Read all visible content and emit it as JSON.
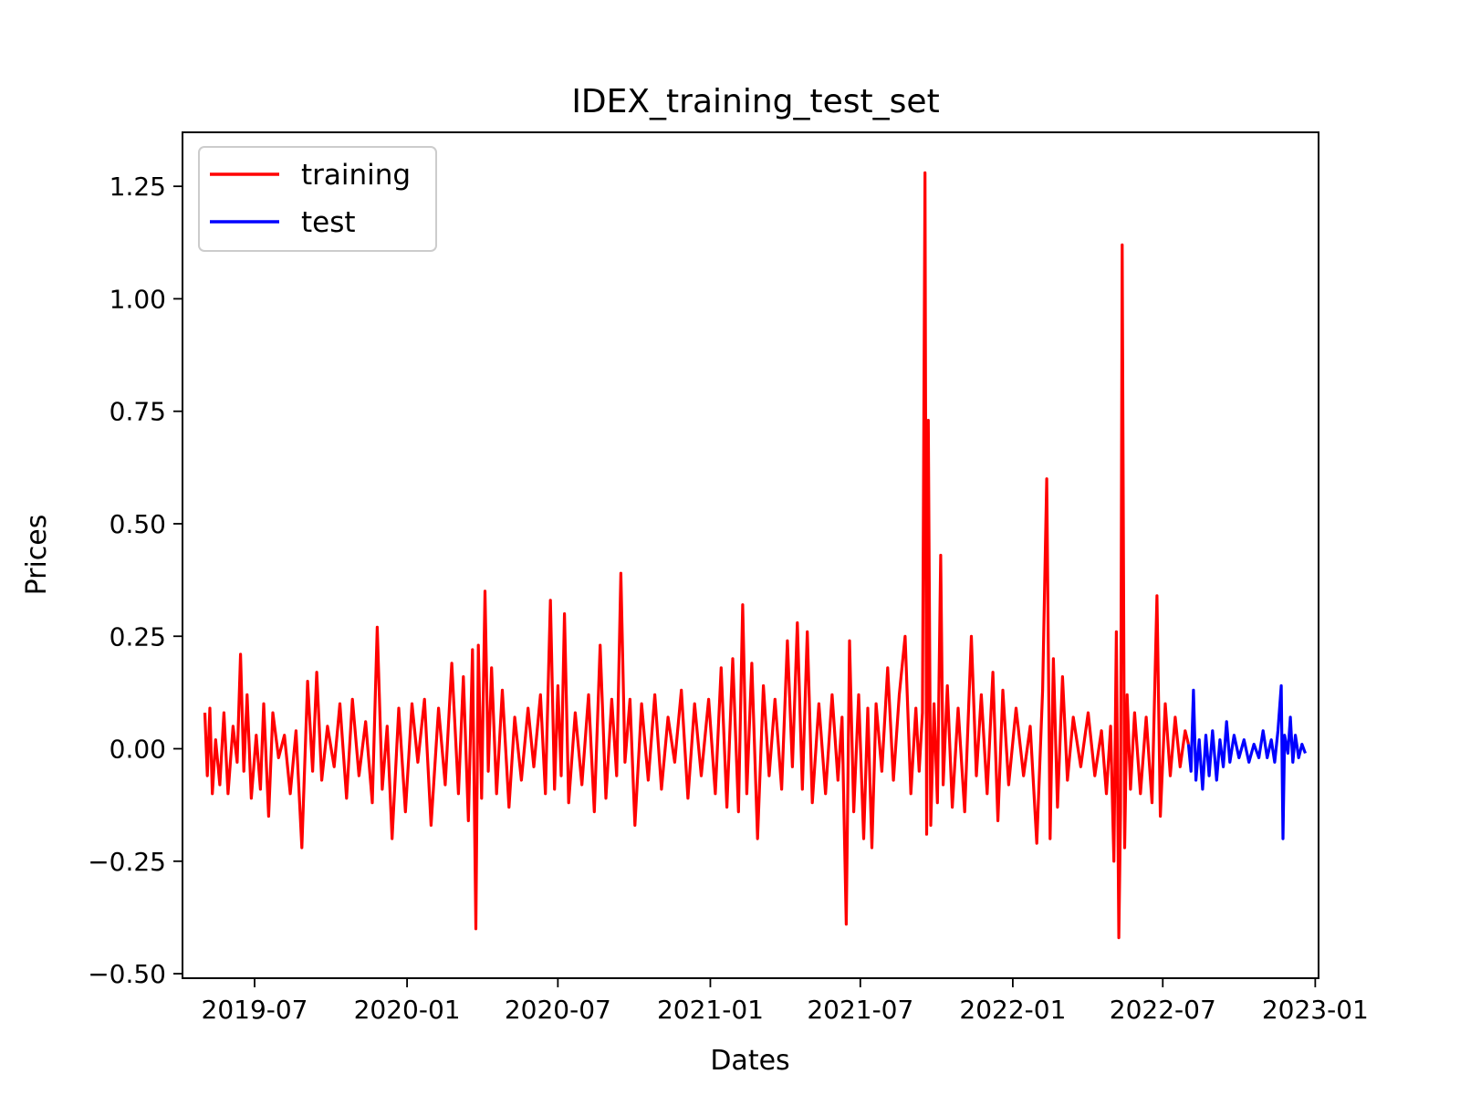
{
  "chart_data": {
    "type": "line",
    "title": "IDEX_training_test_set",
    "xlabel": "Dates",
    "ylabel": "Prices",
    "x_range": [
      "2019-04-05",
      "2023-01-05"
    ],
    "ylim": [
      -0.51,
      1.37
    ],
    "x_ticks": [
      {
        "date": "2019-07-01",
        "label": "2019-07"
      },
      {
        "date": "2020-01-01",
        "label": "2020-01"
      },
      {
        "date": "2020-07-01",
        "label": "2020-07"
      },
      {
        "date": "2021-01-01",
        "label": "2021-01"
      },
      {
        "date": "2021-07-01",
        "label": "2021-07"
      },
      {
        "date": "2022-01-01",
        "label": "2022-01"
      },
      {
        "date": "2022-07-01",
        "label": "2022-07"
      },
      {
        "date": "2023-01-01",
        "label": "2023-01"
      }
    ],
    "y_ticks": [
      {
        "value": -0.5,
        "label": "−0.50"
      },
      {
        "value": -0.25,
        "label": "−0.25"
      },
      {
        "value": 0.0,
        "label": "0.00"
      },
      {
        "value": 0.25,
        "label": "0.25"
      },
      {
        "value": 0.5,
        "label": "0.50"
      },
      {
        "value": 0.75,
        "label": "0.75"
      },
      {
        "value": 1.0,
        "label": "1.00"
      },
      {
        "value": 1.25,
        "label": "1.25"
      }
    ],
    "grid": false,
    "legend": {
      "position": "top-left"
    },
    "series": [
      {
        "name": "training",
        "color": "#ff0000",
        "points": [
          [
            "2019-05-02",
            0.08
          ],
          [
            "2019-05-05",
            -0.06
          ],
          [
            "2019-05-08",
            0.09
          ],
          [
            "2019-05-11",
            -0.1
          ],
          [
            "2019-05-15",
            0.02
          ],
          [
            "2019-05-20",
            -0.08
          ],
          [
            "2019-05-25",
            0.08
          ],
          [
            "2019-05-30",
            -0.1
          ],
          [
            "2019-06-05",
            0.05
          ],
          [
            "2019-06-10",
            -0.03
          ],
          [
            "2019-06-14",
            0.21
          ],
          [
            "2019-06-18",
            -0.05
          ],
          [
            "2019-06-22",
            0.12
          ],
          [
            "2019-06-27",
            -0.11
          ],
          [
            "2019-07-03",
            0.03
          ],
          [
            "2019-07-08",
            -0.09
          ],
          [
            "2019-07-12",
            0.1
          ],
          [
            "2019-07-18",
            -0.15
          ],
          [
            "2019-07-23",
            0.08
          ],
          [
            "2019-07-30",
            -0.02
          ],
          [
            "2019-08-06",
            0.03
          ],
          [
            "2019-08-13",
            -0.1
          ],
          [
            "2019-08-20",
            0.04
          ],
          [
            "2019-08-27",
            -0.22
          ],
          [
            "2019-09-03",
            0.15
          ],
          [
            "2019-09-09",
            -0.05
          ],
          [
            "2019-09-14",
            0.17
          ],
          [
            "2019-09-20",
            -0.07
          ],
          [
            "2019-09-27",
            0.05
          ],
          [
            "2019-10-05",
            -0.04
          ],
          [
            "2019-10-12",
            0.1
          ],
          [
            "2019-10-20",
            -0.11
          ],
          [
            "2019-10-27",
            0.11
          ],
          [
            "2019-11-04",
            -0.06
          ],
          [
            "2019-11-12",
            0.06
          ],
          [
            "2019-11-20",
            -0.12
          ],
          [
            "2019-11-26",
            0.27
          ],
          [
            "2019-12-02",
            -0.09
          ],
          [
            "2019-12-08",
            0.05
          ],
          [
            "2019-12-14",
            -0.2
          ],
          [
            "2019-12-22",
            0.09
          ],
          [
            "2019-12-30",
            -0.14
          ],
          [
            "2020-01-07",
            0.1
          ],
          [
            "2020-01-14",
            -0.03
          ],
          [
            "2020-01-22",
            0.11
          ],
          [
            "2020-01-30",
            -0.17
          ],
          [
            "2020-02-08",
            0.09
          ],
          [
            "2020-02-16",
            -0.08
          ],
          [
            "2020-02-24",
            0.19
          ],
          [
            "2020-03-03",
            -0.1
          ],
          [
            "2020-03-09",
            0.16
          ],
          [
            "2020-03-15",
            -0.16
          ],
          [
            "2020-03-20",
            0.22
          ],
          [
            "2020-03-24",
            -0.4
          ],
          [
            "2020-03-27",
            0.23
          ],
          [
            "2020-03-31",
            -0.11
          ],
          [
            "2020-04-04",
            0.35
          ],
          [
            "2020-04-08",
            -0.05
          ],
          [
            "2020-04-12",
            0.18
          ],
          [
            "2020-04-18",
            -0.1
          ],
          [
            "2020-04-25",
            0.13
          ],
          [
            "2020-05-03",
            -0.13
          ],
          [
            "2020-05-10",
            0.07
          ],
          [
            "2020-05-18",
            -0.07
          ],
          [
            "2020-05-26",
            0.09
          ],
          [
            "2020-06-02",
            -0.04
          ],
          [
            "2020-06-10",
            0.12
          ],
          [
            "2020-06-16",
            -0.1
          ],
          [
            "2020-06-22",
            0.33
          ],
          [
            "2020-06-27",
            -0.09
          ],
          [
            "2020-07-01",
            0.14
          ],
          [
            "2020-07-05",
            -0.06
          ],
          [
            "2020-07-09",
            0.3
          ],
          [
            "2020-07-14",
            -0.12
          ],
          [
            "2020-07-22",
            0.08
          ],
          [
            "2020-07-30",
            -0.08
          ],
          [
            "2020-08-07",
            0.12
          ],
          [
            "2020-08-14",
            -0.14
          ],
          [
            "2020-08-21",
            0.23
          ],
          [
            "2020-08-28",
            -0.11
          ],
          [
            "2020-09-04",
            0.11
          ],
          [
            "2020-09-10",
            -0.06
          ],
          [
            "2020-09-15",
            0.39
          ],
          [
            "2020-09-20",
            -0.03
          ],
          [
            "2020-09-26",
            0.11
          ],
          [
            "2020-10-02",
            -0.17
          ],
          [
            "2020-10-10",
            0.1
          ],
          [
            "2020-10-18",
            -0.07
          ],
          [
            "2020-10-26",
            0.12
          ],
          [
            "2020-11-03",
            -0.09
          ],
          [
            "2020-11-11",
            0.07
          ],
          [
            "2020-11-19",
            -0.03
          ],
          [
            "2020-11-27",
            0.13
          ],
          [
            "2020-12-05",
            -0.11
          ],
          [
            "2020-12-13",
            0.1
          ],
          [
            "2020-12-21",
            -0.06
          ],
          [
            "2020-12-30",
            0.11
          ],
          [
            "2021-01-07",
            -0.1
          ],
          [
            "2021-01-14",
            0.18
          ],
          [
            "2021-01-21",
            -0.13
          ],
          [
            "2021-01-28",
            0.2
          ],
          [
            "2021-02-04",
            -0.14
          ],
          [
            "2021-02-09",
            0.32
          ],
          [
            "2021-02-14",
            -0.1
          ],
          [
            "2021-02-20",
            0.19
          ],
          [
            "2021-02-27",
            -0.2
          ],
          [
            "2021-03-06",
            0.14
          ],
          [
            "2021-03-13",
            -0.06
          ],
          [
            "2021-03-20",
            0.11
          ],
          [
            "2021-03-28",
            -0.09
          ],
          [
            "2021-04-04",
            0.24
          ],
          [
            "2021-04-10",
            -0.04
          ],
          [
            "2021-04-16",
            0.28
          ],
          [
            "2021-04-22",
            -0.09
          ],
          [
            "2021-04-28",
            0.26
          ],
          [
            "2021-05-04",
            -0.12
          ],
          [
            "2021-05-12",
            0.1
          ],
          [
            "2021-05-20",
            -0.1
          ],
          [
            "2021-05-28",
            0.12
          ],
          [
            "2021-06-04",
            -0.07
          ],
          [
            "2021-06-09",
            0.07
          ],
          [
            "2021-06-14",
            -0.39
          ],
          [
            "2021-06-18",
            0.24
          ],
          [
            "2021-06-23",
            -0.14
          ],
          [
            "2021-06-29",
            0.12
          ],
          [
            "2021-07-05",
            -0.2
          ],
          [
            "2021-07-10",
            0.09
          ],
          [
            "2021-07-15",
            -0.22
          ],
          [
            "2021-07-20",
            0.1
          ],
          [
            "2021-07-27",
            -0.05
          ],
          [
            "2021-08-03",
            0.18
          ],
          [
            "2021-08-10",
            -0.07
          ],
          [
            "2021-08-17",
            0.12
          ],
          [
            "2021-08-24",
            0.25
          ],
          [
            "2021-08-31",
            -0.1
          ],
          [
            "2021-09-06",
            0.09
          ],
          [
            "2021-09-10",
            -0.05
          ],
          [
            "2021-09-14",
            0.08
          ],
          [
            "2021-09-17",
            1.28
          ],
          [
            "2021-09-19",
            -0.19
          ],
          [
            "2021-09-21",
            0.73
          ],
          [
            "2021-09-24",
            -0.17
          ],
          [
            "2021-09-28",
            0.1
          ],
          [
            "2021-10-02",
            -0.12
          ],
          [
            "2021-10-06",
            0.43
          ],
          [
            "2021-10-09",
            -0.08
          ],
          [
            "2021-10-14",
            0.14
          ],
          [
            "2021-10-20",
            -0.13
          ],
          [
            "2021-10-27",
            0.09
          ],
          [
            "2021-11-04",
            -0.14
          ],
          [
            "2021-11-12",
            0.25
          ],
          [
            "2021-11-18",
            -0.06
          ],
          [
            "2021-11-24",
            0.12
          ],
          [
            "2021-12-01",
            -0.1
          ],
          [
            "2021-12-08",
            0.17
          ],
          [
            "2021-12-14",
            -0.16
          ],
          [
            "2021-12-20",
            0.13
          ],
          [
            "2021-12-27",
            -0.08
          ],
          [
            "2022-01-05",
            0.09
          ],
          [
            "2022-01-14",
            -0.06
          ],
          [
            "2022-01-22",
            0.05
          ],
          [
            "2022-01-30",
            -0.21
          ],
          [
            "2022-02-06",
            0.13
          ],
          [
            "2022-02-11",
            0.6
          ],
          [
            "2022-02-15",
            -0.2
          ],
          [
            "2022-02-19",
            0.2
          ],
          [
            "2022-02-24",
            -0.13
          ],
          [
            "2022-03-02",
            0.16
          ],
          [
            "2022-03-08",
            -0.07
          ],
          [
            "2022-03-15",
            0.07
          ],
          [
            "2022-03-24",
            -0.04
          ],
          [
            "2022-04-02",
            0.08
          ],
          [
            "2022-04-10",
            -0.06
          ],
          [
            "2022-04-18",
            0.04
          ],
          [
            "2022-04-24",
            -0.1
          ],
          [
            "2022-04-29",
            0.05
          ],
          [
            "2022-05-03",
            -0.25
          ],
          [
            "2022-05-06",
            0.26
          ],
          [
            "2022-05-09",
            -0.42
          ],
          [
            "2022-05-11",
            -0.14
          ],
          [
            "2022-05-13",
            1.12
          ],
          [
            "2022-05-16",
            -0.22
          ],
          [
            "2022-05-19",
            0.12
          ],
          [
            "2022-05-23",
            -0.09
          ],
          [
            "2022-05-28",
            0.08
          ],
          [
            "2022-06-04",
            -0.1
          ],
          [
            "2022-06-11",
            0.07
          ],
          [
            "2022-06-18",
            -0.12
          ],
          [
            "2022-06-24",
            0.34
          ],
          [
            "2022-06-28",
            -0.15
          ],
          [
            "2022-07-04",
            0.1
          ],
          [
            "2022-07-10",
            -0.06
          ],
          [
            "2022-07-16",
            0.07
          ],
          [
            "2022-07-22",
            -0.04
          ],
          [
            "2022-07-28",
            0.04
          ],
          [
            "2022-08-01",
            0.01
          ]
        ]
      },
      {
        "name": "test",
        "color": "#0000ff",
        "points": [
          [
            "2022-08-01",
            0.01
          ],
          [
            "2022-08-04",
            -0.05
          ],
          [
            "2022-08-07",
            0.13
          ],
          [
            "2022-08-10",
            -0.07
          ],
          [
            "2022-08-14",
            0.02
          ],
          [
            "2022-08-18",
            -0.09
          ],
          [
            "2022-08-22",
            0.03
          ],
          [
            "2022-08-26",
            -0.06
          ],
          [
            "2022-08-30",
            0.04
          ],
          [
            "2022-09-04",
            -0.07
          ],
          [
            "2022-09-08",
            0.02
          ],
          [
            "2022-09-12",
            -0.04
          ],
          [
            "2022-09-16",
            0.06
          ],
          [
            "2022-09-20",
            -0.03
          ],
          [
            "2022-09-25",
            0.03
          ],
          [
            "2022-10-01",
            -0.02
          ],
          [
            "2022-10-07",
            0.02
          ],
          [
            "2022-10-13",
            -0.03
          ],
          [
            "2022-10-19",
            0.01
          ],
          [
            "2022-10-25",
            -0.02
          ],
          [
            "2022-10-30",
            0.04
          ],
          [
            "2022-11-04",
            -0.02
          ],
          [
            "2022-11-09",
            0.02
          ],
          [
            "2022-11-13",
            -0.03
          ],
          [
            "2022-11-17",
            0.04
          ],
          [
            "2022-11-21",
            0.14
          ],
          [
            "2022-11-23",
            -0.2
          ],
          [
            "2022-11-25",
            0.03
          ],
          [
            "2022-11-29",
            -0.01
          ],
          [
            "2022-12-02",
            0.07
          ],
          [
            "2022-12-05",
            -0.03
          ],
          [
            "2022-12-08",
            0.03
          ],
          [
            "2022-12-12",
            -0.02
          ],
          [
            "2022-12-16",
            0.01
          ],
          [
            "2022-12-20",
            -0.01
          ]
        ]
      }
    ]
  }
}
